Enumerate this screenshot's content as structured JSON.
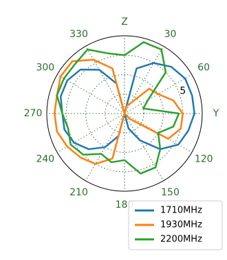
{
  "chart_data": {
    "type": "polar-line",
    "polar_orientation": "clockwise-from-top",
    "r_range": [
      -10,
      10
    ],
    "theta_ticks": [
      0,
      30,
      60,
      90,
      120,
      150,
      180,
      210,
      240,
      270,
      300,
      330
    ],
    "theta_tick_labels": {
      "0": "Z",
      "30": "30",
      "60": "60",
      "90": "Y",
      "120": "120",
      "150": "150",
      "180": "180",
      "210": "210",
      "240": "240",
      "270": "270",
      "300": "300",
      "330": "330"
    },
    "r_ticks": [
      -5,
      0,
      5
    ],
    "r_tick_labels": [
      "",
      "",
      "5"
    ],
    "r_tick_label_angle": 66,
    "grid": true,
    "legend_position": "bottom-right",
    "theta": [
      0,
      15,
      30,
      45,
      60,
      75,
      90,
      105,
      120,
      135,
      150,
      165,
      180,
      195,
      210,
      225,
      240,
      255,
      270,
      285,
      300,
      315,
      330,
      345
    ],
    "series": [
      {
        "name": "1710MHz",
        "color": "#1f77b4",
        "values": [
          -10,
          2,
          5,
          7,
          8,
          8,
          8,
          7,
          6,
          3,
          -2,
          -6,
          -10,
          -4,
          0,
          3,
          5,
          6,
          6,
          7,
          7,
          6,
          3,
          -2
        ]
      },
      {
        "name": "1930MHz",
        "color": "#ff7f0e",
        "values": [
          -10,
          -8,
          -7,
          -1,
          0,
          3,
          5,
          5,
          3,
          -8,
          -10,
          -10,
          -10,
          2,
          5,
          6,
          7,
          8,
          8,
          8,
          9,
          9,
          6,
          2
        ]
      },
      {
        "name": "2200MHz",
        "color": "#2ca02c",
        "values": [
          5,
          9,
          9,
          5,
          -3,
          -5,
          4,
          3,
          0,
          3,
          6,
          6,
          2,
          3,
          2,
          5,
          6,
          5,
          6,
          8,
          8,
          8,
          9,
          6
        ]
      }
    ]
  },
  "colors": {
    "tick_label": "#2d6b2d",
    "grid": "#2d6b2d",
    "frame": "#000000"
  }
}
